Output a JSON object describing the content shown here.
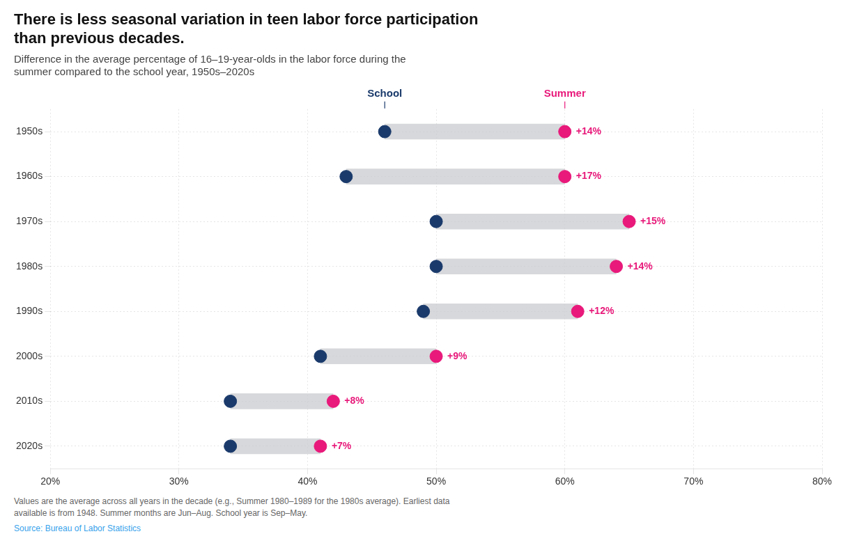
{
  "chart_data": {
    "type": "dumbbell",
    "orientation": "horizontal",
    "title": [
      "There is less seasonal variation in teen labor force participation",
      "than previous decades."
    ],
    "subtitle": "Difference in the average percentage of 16–19-year-olds in the labor force during the\nsummer compared to the school year, 1950s–2020s",
    "footnote": "Values are the average across all years in the decade (e.g., Summer 1980–1989 for the 1980s average). Earliest data\navailable is from 1948. Summer months are Jun–Aug. School year is Sep–May.",
    "source": "Source: Bureau of Labor Statistics",
    "categories": [
      "1950s",
      "1960s",
      "1970s",
      "1980s",
      "1990s",
      "2000s",
      "2010s",
      "2020s"
    ],
    "series": [
      {
        "name": "School",
        "color": "#1a3a6b",
        "values": [
          46,
          43,
          50,
          50,
          49,
          41,
          34,
          34
        ]
      },
      {
        "name": "Summer",
        "color": "#e8197a",
        "values": [
          60,
          60,
          65,
          64,
          61,
          50,
          42,
          41
        ]
      }
    ],
    "difference_labels": [
      "+14%",
      "+17%",
      "+15%",
      "+14%",
      "+12%",
      "+9%",
      "+8%",
      "+7%"
    ],
    "xlim": [
      20,
      80
    ],
    "xticks": [
      {
        "value": 20,
        "label": "20%"
      },
      {
        "value": 30,
        "label": "30%"
      },
      {
        "value": 40,
        "label": "40%"
      },
      {
        "value": 50,
        "label": "50%"
      },
      {
        "value": 60,
        "label": "60%"
      },
      {
        "value": 70,
        "label": "70%"
      },
      {
        "value": 80,
        "label": "80%"
      }
    ],
    "grid": true
  }
}
